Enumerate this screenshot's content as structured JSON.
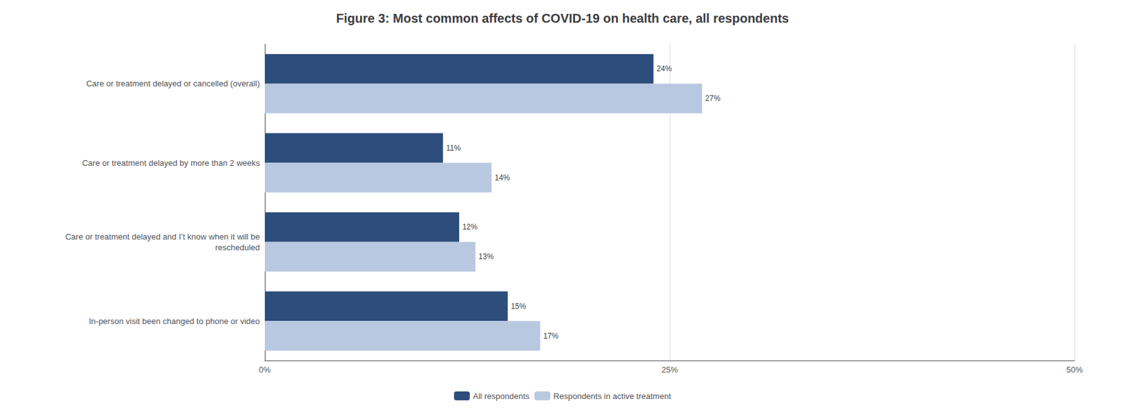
{
  "chart_data": {
    "type": "bar",
    "orientation": "horizontal",
    "title": "Figure 3: Most common affects of COVID-19 on health care, all respondents",
    "categories": [
      "Care or treatment delayed or cancelled (overall)",
      "Care or treatment delayed by more than 2 weeks",
      "Care or treatment delayed and I’t know when it will be\nrescheduled",
      "In-person visit been changed to phone or video"
    ],
    "series": [
      {
        "name": "All respondents",
        "color": "#2d4d7c",
        "values": [
          24,
          11,
          12,
          15
        ],
        "value_labels": [
          "24%",
          "11%",
          "12%",
          "15%"
        ]
      },
      {
        "name": "Respondents in active treatment",
        "color": "#b8c8e0",
        "values": [
          27,
          14,
          13,
          17
        ],
        "value_labels": [
          "27%",
          "14%",
          "13%",
          "17%"
        ]
      }
    ],
    "xlim": [
      0,
      50
    ],
    "xticks": [
      {
        "value": 0,
        "label": "0%"
      },
      {
        "value": 25,
        "label": "25%"
      },
      {
        "value": 50,
        "label": "50%"
      }
    ],
    "grid": true,
    "legend": "bottom",
    "data_labels": true
  }
}
